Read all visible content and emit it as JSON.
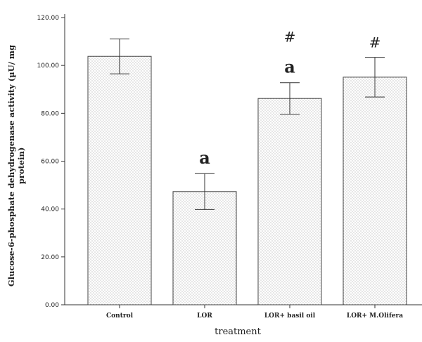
{
  "chart_data": {
    "type": "bar",
    "title": "",
    "xlabel": "treatment",
    "ylabel": [
      "Glucose-6-phosphate dehydrogenase activity (µU/ mg",
      "protein)"
    ],
    "ylim": [
      0,
      120
    ],
    "y_ticks": [
      "0.00",
      "20.00",
      "40.00",
      "60.00",
      "80.00",
      "100.00",
      "120.00"
    ],
    "y_tick_values": [
      0,
      20,
      40,
      60,
      80,
      100,
      120
    ],
    "categories": [
      "Control",
      "LOR",
      "LOR+ basil oil",
      "LOR+ M.Olifera"
    ],
    "values": [
      103.8,
      47.3,
      86.2,
      95.1
    ],
    "error_bars": [
      7.3,
      7.5,
      6.6,
      8.3
    ],
    "annotations": [
      {
        "category": "LOR",
        "labels": [
          "a"
        ]
      },
      {
        "category": "LOR+ basil oil",
        "labels": [
          "a",
          "#"
        ]
      },
      {
        "category": "LOR+ M.Olifera",
        "labels": [
          "#"
        ]
      }
    ],
    "grid": false,
    "legend": "none"
  }
}
